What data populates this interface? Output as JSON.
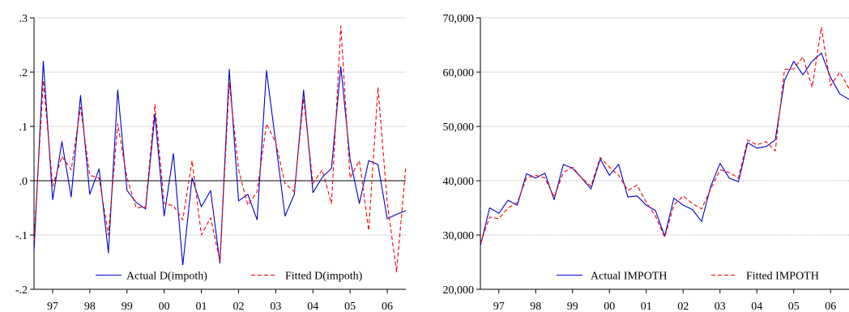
{
  "chart_data": [
    {
      "type": "line",
      "x_tick_labels": [
        "97",
        "98",
        "99",
        "00",
        "01",
        "02",
        "03",
        "04",
        "05",
        "06"
      ],
      "y_tick_labels": [
        ".3",
        ".2",
        ".1",
        ".0",
        "-.1",
        "-.2"
      ],
      "y_ticks": [
        0.3,
        0.2,
        0.1,
        0.0,
        -0.1,
        -0.2
      ],
      "ylim": [
        -0.2,
        0.3
      ],
      "xlim": [
        1996.5,
        2006.5
      ],
      "grid": "horizontal",
      "zero_line": true,
      "legend_placement": "bottom-right",
      "series": [
        {
          "name": "Actual D(impoth)",
          "color": "#0000cc",
          "style": "solid",
          "x": [
            1996.5,
            1996.75,
            1997.0,
            1997.25,
            1997.5,
            1997.75,
            1998.0,
            1998.25,
            1998.5,
            1998.75,
            1999.0,
            1999.25,
            1999.5,
            1999.75,
            2000.0,
            2000.25,
            2000.5,
            2000.75,
            2001.0,
            2001.25,
            2001.5,
            2001.75,
            2002.0,
            2002.25,
            2002.5,
            2002.75,
            2003.0,
            2003.25,
            2003.5,
            2003.75,
            2004.0,
            2004.25,
            2004.5,
            2004.75,
            2005.0,
            2005.25,
            2005.5,
            2005.75,
            2006.0,
            2006.25,
            2006.5
          ],
          "values": [
            -0.13,
            0.22,
            -0.035,
            0.072,
            -0.03,
            0.157,
            -0.025,
            0.022,
            -0.133,
            0.167,
            -0.018,
            -0.04,
            -0.052,
            0.122,
            -0.065,
            0.05,
            -0.156,
            0.005,
            -0.048,
            -0.018,
            -0.152,
            0.205,
            -0.037,
            -0.025,
            -0.072,
            0.203,
            0.07,
            -0.065,
            -0.025,
            0.167,
            -0.022,
            0.006,
            0.023,
            0.21,
            0.04,
            -0.042,
            0.037,
            0.03,
            -0.07,
            -0.062,
            -0.055
          ]
        },
        {
          "name": "Fitted D(impoth)",
          "color": "#ee0000",
          "style": "dashed",
          "x": [
            1996.5,
            1996.75,
            1997.0,
            1997.25,
            1997.5,
            1997.75,
            1998.0,
            1998.25,
            1998.5,
            1998.75,
            1999.0,
            1999.25,
            1999.5,
            1999.75,
            2000.0,
            2000.25,
            2000.5,
            2000.75,
            2001.0,
            2001.25,
            2001.5,
            2001.75,
            2002.0,
            2002.25,
            2002.5,
            2002.75,
            2003.0,
            2003.25,
            2003.5,
            2003.75,
            2004.0,
            2004.25,
            2004.5,
            2004.75,
            2005.0,
            2005.25,
            2005.5,
            2005.75,
            2006.0,
            2006.25,
            2006.5
          ],
          "values": [
            -0.11,
            0.185,
            -0.01,
            0.045,
            0.02,
            0.135,
            0.01,
            0.005,
            -0.1,
            0.105,
            0.005,
            -0.05,
            -0.048,
            0.14,
            -0.042,
            -0.046,
            -0.072,
            0.037,
            -0.1,
            -0.068,
            -0.148,
            0.18,
            0.02,
            -0.045,
            -0.02,
            0.105,
            0.07,
            -0.005,
            -0.02,
            0.152,
            -0.005,
            0.02,
            -0.042,
            0.285,
            0.005,
            0.037,
            -0.092,
            0.172,
            -0.04,
            -0.168,
            0.027
          ]
        }
      ]
    },
    {
      "type": "line",
      "x_tick_labels": [
        "97",
        "98",
        "99",
        "00",
        "01",
        "02",
        "03",
        "04",
        "05",
        "06"
      ],
      "y_tick_labels": [
        "70,000",
        "60,000",
        "50,000",
        "40,000",
        "30,000",
        "20,000"
      ],
      "y_ticks": [
        70000,
        60000,
        50000,
        40000,
        30000,
        20000
      ],
      "ylim": [
        20000,
        70000
      ],
      "xlim": [
        1996.5,
        2006.5
      ],
      "grid": "horizontal",
      "legend_placement": "bottom-right",
      "series": [
        {
          "name": "Actual IMPOTH",
          "color": "#0000cc",
          "style": "solid",
          "x": [
            1996.5,
            1996.75,
            1997.0,
            1997.25,
            1997.5,
            1997.75,
            1998.0,
            1998.25,
            1998.5,
            1998.75,
            1999.0,
            1999.25,
            1999.5,
            1999.75,
            2000.0,
            2000.25,
            2000.5,
            2000.75,
            2001.0,
            2001.25,
            2001.5,
            2001.75,
            2002.0,
            2002.25,
            2002.5,
            2002.75,
            2003.0,
            2003.25,
            2003.5,
            2003.75,
            2004.0,
            2004.25,
            2004.5,
            2004.75,
            2005.0,
            2005.25,
            2005.5,
            2005.75,
            2006.0,
            2006.25,
            2006.5
          ],
          "values": [
            28000,
            35000,
            34000,
            36400,
            35500,
            41300,
            40500,
            41400,
            36500,
            43000,
            42300,
            40500,
            38500,
            44000,
            41000,
            43000,
            37000,
            37200,
            35500,
            34500,
            29800,
            36800,
            35500,
            34700,
            32500,
            39000,
            43200,
            40500,
            39800,
            47000,
            46000,
            46300,
            47500,
            58500,
            62000,
            59500,
            62000,
            63500,
            59000,
            56000,
            55000
          ]
        },
        {
          "name": "Fitted IMPOTH",
          "color": "#ee0000",
          "style": "dashed",
          "x": [
            1996.5,
            1996.75,
            1997.0,
            1997.25,
            1997.5,
            1997.75,
            1998.0,
            1998.25,
            1998.5,
            1998.75,
            1999.0,
            1999.25,
            1999.5,
            1999.75,
            2000.0,
            2000.25,
            2000.5,
            2000.75,
            2001.0,
            2001.25,
            2001.5,
            2001.75,
            2002.0,
            2002.25,
            2002.5,
            2002.75,
            2003.0,
            2003.25,
            2003.5,
            2003.75,
            2004.0,
            2004.25,
            2004.5,
            2004.75,
            2005.0,
            2005.25,
            2005.5,
            2005.75,
            2006.0,
            2006.25,
            2006.5
          ],
          "values": [
            28500,
            33300,
            33000,
            35000,
            36000,
            40500,
            41000,
            40500,
            37000,
            41500,
            42500,
            40500,
            39000,
            44300,
            42500,
            41000,
            38200,
            39200,
            36000,
            33500,
            29600,
            35500,
            37200,
            35800,
            34800,
            38500,
            42000,
            41500,
            40500,
            47500,
            46600,
            47200,
            45500,
            60500,
            60600,
            62800,
            57200,
            68300,
            57500,
            60000,
            57000
          ]
        }
      ]
    }
  ]
}
